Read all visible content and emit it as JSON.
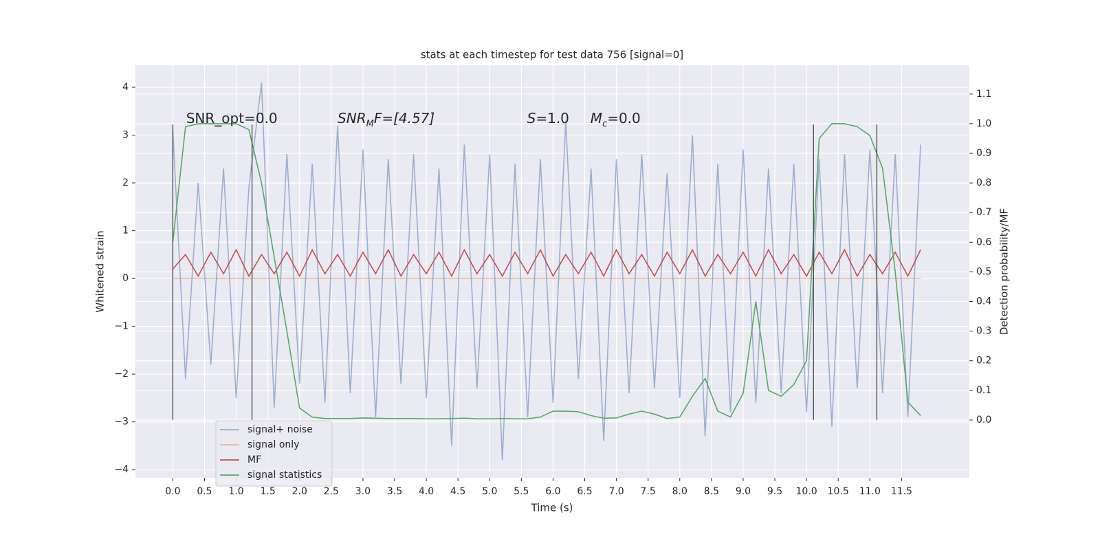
{
  "chart_data": {
    "type": "line",
    "title": "stats at each timestep for test data 756 [signal=0]",
    "xlabel": "Time (s)",
    "ylabel": "Whitened strain",
    "y2label": "Detection probability/MF",
    "x": [
      0,
      0.2,
      0.4,
      0.6,
      0.8,
      1.0,
      1.2,
      1.4,
      1.6,
      1.8,
      2.0,
      2.2,
      2.4,
      2.6,
      2.8,
      3.0,
      3.2,
      3.4,
      3.6,
      3.8,
      4.0,
      4.2,
      4.4,
      4.6,
      4.8,
      5.0,
      5.2,
      5.4,
      5.6,
      5.8,
      6.0,
      6.2,
      6.4,
      6.6,
      6.8,
      7.0,
      7.2,
      7.4,
      7.6,
      7.8,
      8.0,
      8.2,
      8.4,
      8.6,
      8.8,
      9.0,
      9.2,
      9.4,
      9.6,
      9.8,
      10.0,
      10.2,
      10.4,
      10.6,
      10.8,
      11.0,
      11.2,
      11.4,
      11.6,
      11.8
    ],
    "series": [
      {
        "name": "signal+ noise",
        "color": "#4c72b0",
        "opacity": 0.5,
        "values": [
          3.1,
          -2.1,
          2.0,
          -1.8,
          2.3,
          -2.5,
          1.9,
          4.1,
          -2.7,
          2.6,
          -2.2,
          2.4,
          -2.6,
          3.2,
          -2.4,
          2.7,
          -2.9,
          2.5,
          -2.2,
          2.6,
          -2.5,
          2.3,
          -3.5,
          2.8,
          -2.3,
          2.6,
          -3.8,
          2.4,
          -2.9,
          2.5,
          -2.6,
          3.3,
          -2.1,
          2.3,
          -3.4,
          2.5,
          -2.4,
          2.6,
          -2.3,
          2.2,
          -2.5,
          3.0,
          -3.3,
          2.4,
          -2.8,
          2.7,
          -2.6,
          2.3,
          -2.4,
          2.4,
          -2.8,
          2.5,
          -3.1,
          2.6,
          -2.3,
          2.7,
          -2.4,
          2.6,
          -2.9,
          2.8
        ]
      },
      {
        "name": "signal only",
        "color": "#dd8452",
        "opacity": 0.5,
        "values": [
          0,
          0,
          0,
          0,
          0,
          0,
          0,
          0,
          0,
          0,
          0,
          0,
          0,
          0,
          0,
          0,
          0,
          0,
          0,
          0,
          0,
          0,
          0,
          0,
          0,
          0,
          0,
          0,
          0,
          0,
          0,
          0,
          0,
          0,
          0,
          0,
          0,
          0,
          0,
          0,
          0,
          0,
          0,
          0,
          0,
          0,
          0,
          0,
          0,
          0,
          0,
          0,
          0,
          0,
          0,
          0,
          0,
          0,
          0,
          0
        ]
      },
      {
        "name": "MF",
        "color": "#c44e52",
        "opacity": 1,
        "values": [
          0.2,
          0.5,
          0.05,
          0.55,
          0.1,
          0.6,
          0.05,
          0.5,
          0.1,
          0.55,
          0.05,
          0.6,
          0.1,
          0.5,
          0.05,
          0.55,
          0.1,
          0.6,
          0.05,
          0.5,
          0.1,
          0.55,
          0.05,
          0.6,
          0.1,
          0.5,
          0.05,
          0.55,
          0.1,
          0.6,
          0.05,
          0.5,
          0.1,
          0.55,
          0.05,
          0.6,
          0.1,
          0.5,
          0.05,
          0.55,
          0.1,
          0.6,
          0.05,
          0.5,
          0.1,
          0.55,
          0.05,
          0.6,
          0.1,
          0.5,
          0.05,
          0.55,
          0.1,
          0.6,
          0.05,
          0.5,
          0.1,
          0.55,
          0.05,
          0.6
        ]
      },
      {
        "name": "signal statistics",
        "color": "#55a868",
        "opacity": 1,
        "axis": "y2",
        "values": [
          0.6,
          0.99,
          1.0,
          1.0,
          1.0,
          1.0,
          0.98,
          0.8,
          0.55,
          0.3,
          0.04,
          0.01,
          0.005,
          0.005,
          0.005,
          0.007,
          0.006,
          0.005,
          0.005,
          0.005,
          0.004,
          0.004,
          0.005,
          0.006,
          0.004,
          0.004,
          0.005,
          0.004,
          0.004,
          0.01,
          0.03,
          0.03,
          0.028,
          0.015,
          0.006,
          0.007,
          0.02,
          0.03,
          0.02,
          0.005,
          0.01,
          0.08,
          0.14,
          0.03,
          0.01,
          0.09,
          0.4,
          0.1,
          0.08,
          0.12,
          0.2,
          0.95,
          1.0,
          1.0,
          0.99,
          0.96,
          0.85,
          0.5,
          0.06,
          0.015
        ]
      }
    ],
    "xlim": [
      -0.59,
      12.57
    ],
    "xticks": [
      {
        "value": 0,
        "label": "0.0"
      },
      {
        "value": 0.5,
        "label": "0.5"
      },
      {
        "value": 1,
        "label": "1.0"
      },
      {
        "value": 1.5,
        "label": "1.5"
      },
      {
        "value": 2,
        "label": "2.0"
      },
      {
        "value": 2.5,
        "label": "2.5"
      },
      {
        "value": 3,
        "label": "3.0"
      },
      {
        "value": 3.5,
        "label": "3.5"
      },
      {
        "value": 4,
        "label": "4.0"
      },
      {
        "value": 4.5,
        "label": "4.5"
      },
      {
        "value": 5,
        "label": "5.0"
      },
      {
        "value": 5.5,
        "label": "5.5"
      },
      {
        "value": 6,
        "label": "6.0"
      },
      {
        "value": 6.5,
        "label": "6.5"
      },
      {
        "value": 7,
        "label": "7.0"
      },
      {
        "value": 7.5,
        "label": "7.5"
      },
      {
        "value": 8,
        "label": "8.0"
      },
      {
        "value": 8.5,
        "label": "8.5"
      },
      {
        "value": 9,
        "label": "9.0"
      },
      {
        "value": 9.5,
        "label": "9.5"
      },
      {
        "value": 10,
        "label": "10.0"
      },
      {
        "value": 10.5,
        "label": "10.5"
      },
      {
        "value": 11,
        "label": "11.0"
      },
      {
        "value": 11.5,
        "label": "11.5"
      }
    ],
    "ylim": [
      -4.17,
      4.46
    ],
    "yticks": [
      {
        "value": -4,
        "label": "−4"
      },
      {
        "value": -3,
        "label": "−3"
      },
      {
        "value": -2,
        "label": "−2"
      },
      {
        "value": -1,
        "label": "−1"
      },
      0,
      1,
      2,
      3,
      4
    ],
    "y2lim": [
      -0.195,
      1.197
    ],
    "y2ticks": [
      {
        "value": 0,
        "label": "0.0"
      },
      {
        "value": 0.1,
        "label": "0.1"
      },
      {
        "value": 0.2,
        "label": "0.2"
      },
      {
        "value": 0.3,
        "label": "0.3"
      },
      {
        "value": 0.4,
        "label": "0.4"
      },
      {
        "value": 0.5,
        "label": "0.5"
      },
      {
        "value": 0.6,
        "label": "0.6"
      },
      {
        "value": 0.7,
        "label": "0.7"
      },
      {
        "value": 0.8,
        "label": "0.8"
      },
      {
        "value": 0.9,
        "label": "0.9"
      },
      {
        "value": 1.0,
        "label": "1.0"
      },
      {
        "value": 1.1,
        "label": "1.1"
      }
    ],
    "grid": true,
    "legend": "lower left",
    "vlines": [
      0,
      1.25,
      10.11,
      11.11
    ],
    "vline_range": [
      -2.96,
      3.22
    ],
    "annotations": [
      {
        "x": 0.21,
        "y": 3.34,
        "parts": [
          {
            "text": "SNR_opt=0.0",
            "style": "normal"
          }
        ]
      },
      {
        "x": 2.6,
        "y": 3.34,
        "parts": [
          {
            "text": "SNR",
            "style": "italic"
          },
          {
            "text": "M",
            "style": "sub"
          },
          {
            "text": "F=[4.57]",
            "style": "mixed"
          }
        ]
      },
      {
        "x": 5.59,
        "y": 3.34,
        "parts": [
          {
            "text": "S",
            "style": "italic"
          },
          {
            "text": "=1.0",
            "style": "normal"
          }
        ]
      },
      {
        "x": 6.59,
        "y": 3.34,
        "parts": [
          {
            "text": "M",
            "style": "italic"
          },
          {
            "text": "c",
            "style": "sub"
          },
          {
            "text": "=0.0",
            "style": "normal"
          }
        ]
      }
    ]
  }
}
